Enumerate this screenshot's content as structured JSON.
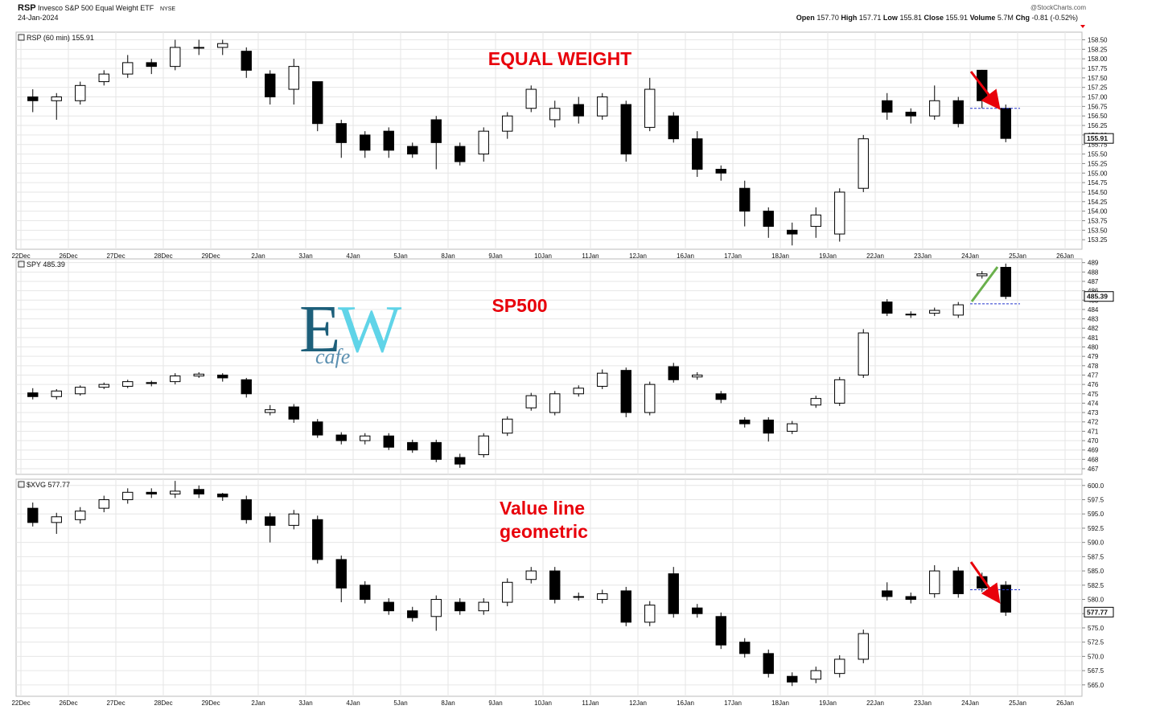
{
  "header": {
    "symbol": "RSP",
    "name": "Invesco S&P 500 Equal Weight ETF",
    "exchange": "NYSE",
    "date": "24-Jan-2024",
    "source": "@StockCharts.com",
    "quote": [
      "Open",
      "157.70",
      "High",
      "157.71",
      "Low",
      "155.81",
      "Close",
      "155.91",
      "Volume",
      "5.7M",
      "Chg",
      "-0.81 (-0.52%)"
    ]
  },
  "logo": [
    "E",
    "W",
    "cafe"
  ],
  "chart_data": [
    {
      "type": "candlestick",
      "legend": "RSP (60 min) 155.91",
      "annotations": [
        "EQUAL WEIGHT"
      ],
      "annotation_color": "#e8000b",
      "up_color": "#ffffff",
      "down_color": "#000000",
      "reference_line": 156.7,
      "reference_color": "#2233cc",
      "grid": true,
      "xticks": [
        "22Dec",
        "26Dec",
        "27Dec",
        "28Dec",
        "29Dec",
        "2Jan",
        "3Jan",
        "4Jan",
        "5Jan",
        "8Jan",
        "9Jan",
        "10Jan",
        "11Jan",
        "12Jan",
        "16Jan",
        "17Jan",
        "18Jan",
        "19Jan",
        "22Jan",
        "23Jan",
        "24Jan",
        "25Jan",
        "26Jan"
      ],
      "ylim": [
        153.0,
        158.7
      ],
      "yticks": [
        153.25,
        {
          "value": 153.5,
          "label": "153.50"
        },
        153.75,
        {
          "value": 154,
          "label": "154.00"
        },
        154.25,
        {
          "value": 154.5,
          "label": "154.50"
        },
        154.75,
        {
          "value": 155,
          "label": "155.00"
        },
        155.25,
        {
          "value": 155.5,
          "label": "155.50"
        },
        155.75,
        {
          "value": 156,
          "label": "156.00"
        },
        156.25,
        {
          "value": 156.5,
          "label": "156.50"
        },
        156.75,
        {
          "value": 157,
          "label": "157.00"
        },
        157.25,
        {
          "value": 157.5,
          "label": "157.50"
        },
        157.75,
        {
          "value": 158,
          "label": "158.00"
        },
        158.25,
        {
          "value": 158.5,
          "label": "158.50"
        }
      ],
      "open": [
        157.0,
        156.9,
        156.9,
        157.4,
        157.6,
        157.9,
        157.8,
        158.3,
        158.3,
        158.2,
        157.6,
        157.2,
        157.4,
        156.3,
        156.0,
        156.1,
        155.7,
        156.4,
        155.7,
        155.5,
        156.1,
        156.7,
        156.4,
        156.8,
        156.5,
        156.8,
        156.2,
        156.5,
        155.9,
        155.1,
        154.6,
        154.0,
        153.5,
        153.6,
        153.4,
        154.6,
        156.9,
        156.6,
        156.5,
        156.9,
        157.7,
        156.7
      ],
      "high": [
        157.2,
        157.1,
        157.4,
        157.7,
        158.1,
        158.0,
        158.5,
        158.5,
        158.5,
        158.3,
        157.7,
        158.0,
        157.4,
        156.4,
        156.1,
        156.2,
        155.8,
        156.5,
        155.8,
        156.2,
        156.6,
        157.3,
        156.9,
        157.0,
        157.1,
        156.9,
        157.5,
        156.6,
        156.1,
        155.2,
        154.8,
        154.1,
        153.7,
        154.1,
        154.6,
        156.0,
        157.1,
        156.7,
        157.3,
        157.0,
        157.71,
        156.8
      ],
      "low": [
        156.6,
        156.4,
        156.8,
        157.3,
        157.5,
        157.6,
        157.7,
        158.1,
        158.1,
        157.5,
        156.8,
        156.8,
        156.1,
        155.4,
        155.4,
        155.4,
        155.4,
        155.1,
        155.2,
        155.3,
        155.9,
        156.6,
        156.2,
        156.3,
        156.4,
        155.3,
        156.1,
        155.8,
        154.9,
        154.8,
        153.6,
        153.3,
        153.1,
        153.3,
        153.2,
        154.5,
        156.4,
        156.3,
        156.4,
        156.2,
        156.7,
        155.81
      ],
      "close": [
        156.9,
        157.0,
        157.3,
        157.6,
        157.9,
        157.8,
        158.3,
        158.3,
        158.4,
        157.7,
        157.0,
        157.8,
        156.3,
        155.8,
        155.6,
        155.6,
        155.5,
        155.8,
        155.3,
        156.1,
        156.5,
        157.2,
        156.7,
        156.5,
        157.0,
        155.5,
        157.2,
        155.9,
        155.1,
        155.0,
        154.0,
        153.6,
        153.4,
        153.9,
        154.5,
        155.9,
        156.6,
        156.5,
        156.9,
        156.3,
        156.9,
        155.91
      ]
    },
    {
      "type": "candlestick",
      "legend": "SPY 485.39",
      "annotations": [
        "SP500"
      ],
      "annotation_color": "#e8000b",
      "up_color": "#ffffff",
      "down_color": "#000000",
      "reference_line": 484.6,
      "reference_color": "#2233cc",
      "grid": true,
      "ylim": [
        466.4,
        489.4
      ],
      "yticks": [
        467,
        468,
        469,
        470,
        471,
        472,
        473,
        474,
        475,
        476,
        477,
        478,
        479,
        480,
        481,
        482,
        483,
        484,
        485,
        486,
        487,
        488,
        489
      ],
      "open": [
        475.1,
        474.7,
        475.0,
        475.7,
        475.8,
        476.2,
        476.3,
        476.9,
        477.0,
        476.5,
        473.0,
        473.6,
        472.0,
        470.6,
        470.0,
        470.5,
        469.8,
        469.8,
        468.2,
        468.5,
        470.8,
        473.5,
        473.0,
        475.0,
        475.8,
        477.5,
        473.0,
        477.9,
        476.8,
        475.0,
        472.2,
        472.2,
        471.0,
        473.8,
        474.0,
        477.0,
        484.8,
        483.5,
        483.6,
        483.4,
        487.6,
        488.5
      ],
      "high": [
        475.6,
        475.5,
        475.9,
        476.2,
        476.5,
        476.4,
        477.2,
        477.3,
        477.2,
        476.7,
        473.8,
        473.9,
        472.3,
        470.9,
        470.8,
        470.8,
        470.1,
        470.1,
        468.6,
        470.8,
        472.6,
        475.1,
        475.3,
        475.9,
        477.6,
        477.8,
        476.3,
        478.3,
        477.3,
        475.3,
        472.5,
        472.5,
        472.1,
        474.8,
        476.8,
        481.9,
        485.1,
        483.8,
        484.2,
        484.8,
        488.1,
        488.9
      ],
      "low": [
        474.4,
        474.4,
        474.8,
        475.5,
        475.6,
        475.8,
        476.0,
        476.7,
        476.3,
        474.6,
        472.7,
        471.9,
        470.3,
        469.6,
        469.6,
        469.0,
        468.7,
        467.7,
        467.1,
        468.2,
        470.5,
        473.2,
        472.7,
        474.7,
        475.5,
        472.5,
        472.7,
        476.2,
        476.5,
        474.0,
        471.4,
        469.9,
        470.7,
        473.5,
        473.7,
        476.7,
        483.3,
        483.1,
        483.3,
        483.1,
        487.3,
        485.1
      ],
      "close": [
        474.7,
        475.3,
        475.7,
        476.0,
        476.3,
        476.1,
        476.9,
        477.1,
        476.7,
        475.0,
        473.3,
        472.3,
        470.6,
        470.0,
        470.5,
        469.3,
        469.0,
        468.0,
        467.5,
        470.5,
        472.3,
        474.8,
        475.0,
        475.6,
        477.2,
        473.0,
        476.0,
        476.5,
        477.0,
        474.4,
        471.8,
        470.8,
        471.8,
        474.5,
        476.5,
        481.5,
        483.6,
        483.5,
        483.9,
        484.5,
        487.8,
        485.39
      ]
    },
    {
      "type": "candlestick",
      "legend": "$XVG 577.77",
      "annotations": [
        "Value line",
        "geometric"
      ],
      "annotation_color": "#e8000b",
      "up_color": "#ffffff",
      "down_color": "#000000",
      "reference_line": 581.7,
      "reference_color": "#2233cc",
      "grid": true,
      "xticks": [
        "22Dec",
        "26Dec",
        "27Dec",
        "28Dec",
        "29Dec",
        "2Jan",
        "3Jan",
        "4Jan",
        "5Jan",
        "8Jan",
        "9Jan",
        "10Jan",
        "11Jan",
        "12Jan",
        "16Jan",
        "17Jan",
        "18Jan",
        "19Jan",
        "22Jan",
        "23Jan",
        "24Jan",
        "25Jan",
        "26Jan"
      ],
      "ylim": [
        563.0,
        601.1
      ],
      "yticks": [
        {
          "value": 565,
          "label": "565.0"
        },
        567.5,
        {
          "value": 570,
          "label": "570.0"
        },
        572.5,
        {
          "value": 575,
          "label": "575.0"
        },
        577.5,
        {
          "value": 580,
          "label": "580.0"
        },
        582.5,
        {
          "value": 585,
          "label": "585.0"
        },
        587.5,
        {
          "value": 590,
          "label": "590.0"
        },
        592.5,
        {
          "value": 595,
          "label": "595.0"
        },
        597.5,
        {
          "value": 600,
          "label": "600.0"
        }
      ],
      "open": [
        596.0,
        593.5,
        594.0,
        596.0,
        597.5,
        598.8,
        598.5,
        599.3,
        598.5,
        597.5,
        594.5,
        593.0,
        594.0,
        587.0,
        582.5,
        579.5,
        578.0,
        577.0,
        579.5,
        578.0,
        579.5,
        583.5,
        585.0,
        580.5,
        580.0,
        581.5,
        576.0,
        584.5,
        578.5,
        577.0,
        572.5,
        570.5,
        566.5,
        566.0,
        567.0,
        569.5,
        581.5,
        580.5,
        581.0,
        585.0,
        584.0,
        582.5
      ],
      "high": [
        597.0,
        595.2,
        596.2,
        598.2,
        599.5,
        599.5,
        600.8,
        600.0,
        598.7,
        598.2,
        595.2,
        595.7,
        594.7,
        587.7,
        583.2,
        580.2,
        578.7,
        580.7,
        580.2,
        580.2,
        583.7,
        585.7,
        585.7,
        581.2,
        581.7,
        582.2,
        579.7,
        585.7,
        579.2,
        577.7,
        573.2,
        571.2,
        567.2,
        568.2,
        570.2,
        574.7,
        583.0,
        581.2,
        586.0,
        585.7,
        584.7,
        583.2
      ],
      "low": [
        592.8,
        591.5,
        593.3,
        595.3,
        596.8,
        597.8,
        597.8,
        597.8,
        597.3,
        593.3,
        590.0,
        592.3,
        586.3,
        579.5,
        579.3,
        577.3,
        576.1,
        574.5,
        577.3,
        577.3,
        578.8,
        582.8,
        579.3,
        579.8,
        579.3,
        575.3,
        575.3,
        576.8,
        576.8,
        571.3,
        569.8,
        566.3,
        564.8,
        565.3,
        566.3,
        568.8,
        579.8,
        579.3,
        580.3,
        580.3,
        581.3,
        577.1
      ],
      "close": [
        593.5,
        594.5,
        595.5,
        597.5,
        598.8,
        598.5,
        599.0,
        598.5,
        598.0,
        594.0,
        593.0,
        595.0,
        587.0,
        582.0,
        580.0,
        578.0,
        576.8,
        580.0,
        578.0,
        579.5,
        583.0,
        585.0,
        580.0,
        580.5,
        581.0,
        576.0,
        579.0,
        577.5,
        577.5,
        572.0,
        570.5,
        567.0,
        565.5,
        567.5,
        569.5,
        574.0,
        580.5,
        580.0,
        585.0,
        581.0,
        582.0,
        577.77
      ]
    }
  ]
}
